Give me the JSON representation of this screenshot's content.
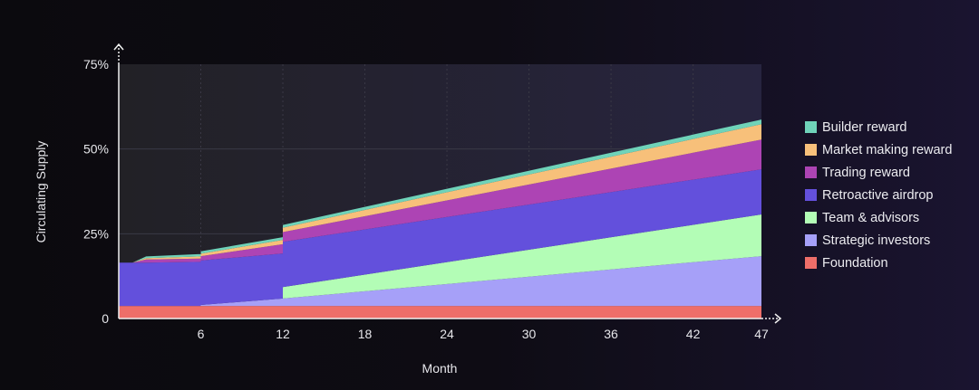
{
  "chart_data": {
    "type": "area",
    "stacked": true,
    "xlabel": "Month",
    "ylabel": "Circulating Supply",
    "xlim": [
      0,
      47
    ],
    "ylim": [
      0,
      75
    ],
    "x_ticks": [
      6,
      12,
      18,
      24,
      30,
      36,
      42,
      47
    ],
    "y_ticks": [
      {
        "v": 0,
        "label": "0"
      },
      {
        "v": 25,
        "label": "25%"
      },
      {
        "v": 50,
        "label": "50%"
      },
      {
        "v": 75,
        "label": "75%"
      }
    ],
    "grid": true,
    "legend_position": "right",
    "x": [
      0,
      1,
      2,
      6,
      6,
      12,
      12,
      47
    ],
    "series": [
      {
        "name": "Foundation",
        "color": "#ee6e69",
        "values": [
          3.7,
          3.7,
          3.7,
          3.7,
          3.7,
          3.7,
          3.7,
          3.7
        ]
      },
      {
        "name": "Strategic investors",
        "color": "#a6a0f8",
        "values": [
          0,
          0,
          0,
          0,
          0.3,
          2.2,
          2.2,
          14.7
        ]
      },
      {
        "name": "Team & advisors",
        "color": "#b3fdb6",
        "values": [
          0,
          0,
          0,
          0,
          0,
          0,
          3.4,
          12.3
        ]
      },
      {
        "name": "Retroactive airdrop",
        "color": "#6350dc",
        "values": [
          12.8,
          12.8,
          12.8,
          13.0,
          13.1,
          13.3,
          13.3,
          13.3
        ]
      },
      {
        "name": "Trading reward",
        "color": "#ad44b4",
        "values": [
          0,
          0,
          0.9,
          1.0,
          1.3,
          2.7,
          2.9,
          8.8
        ]
      },
      {
        "name": "Market making reward",
        "color": "#f7c07a",
        "values": [
          0,
          0,
          0.4,
          0.6,
          0.7,
          1.3,
          1.3,
          4.5
        ]
      },
      {
        "name": "Builder reward",
        "color": "#6fd3b9",
        "values": [
          0,
          0,
          0.5,
          0.7,
          0.7,
          0.8,
          0.8,
          1.4
        ]
      }
    ]
  }
}
